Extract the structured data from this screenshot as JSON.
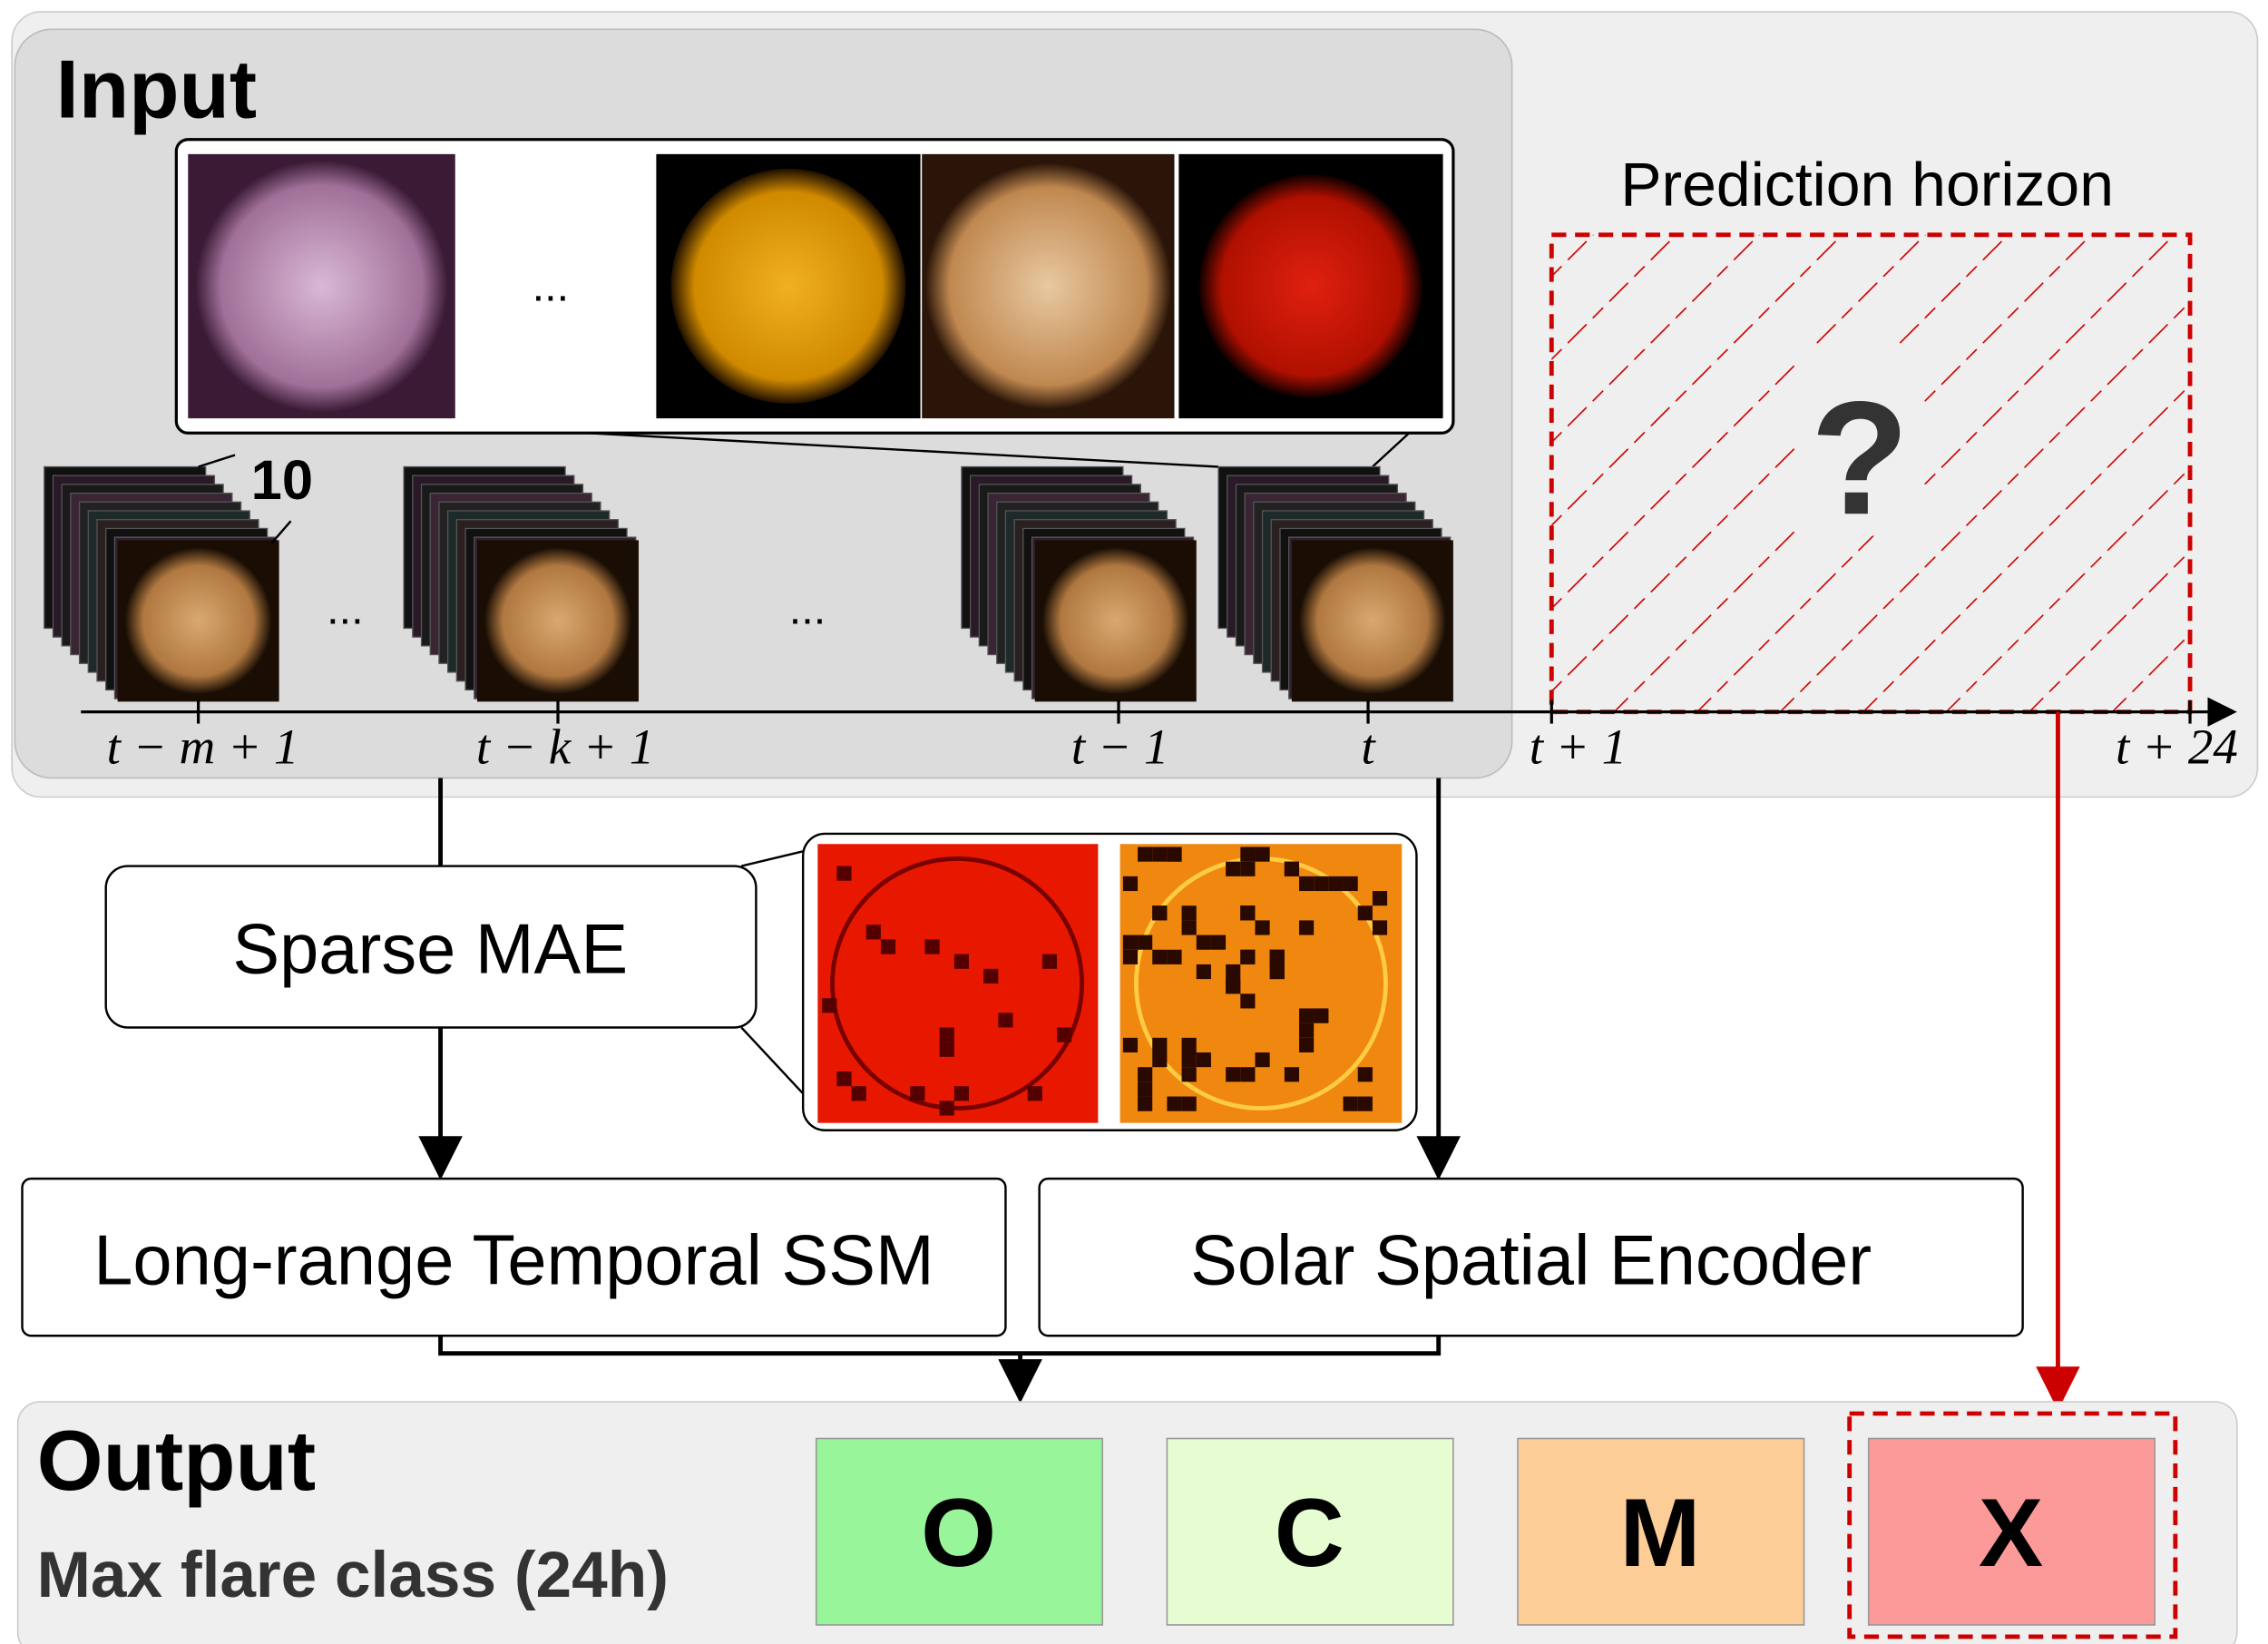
{
  "input": {
    "title": "Input",
    "channel_count": "10",
    "ellipses": [
      "...",
      "...",
      "..."
    ],
    "time_labels": [
      "t − m + 1",
      "t − k + 1",
      "t − 1",
      "t",
      "t + 1",
      "t + 24"
    ]
  },
  "prediction": {
    "title": "Prediction horizon",
    "unknown": "?"
  },
  "modules": {
    "sparse_mae": "Sparse MAE",
    "temporal": "Long-range Temporal SSM",
    "spatial": "Solar Spatial Encoder"
  },
  "output": {
    "title": "Output",
    "subtitle": "Max flare class (24h)",
    "classes": [
      "O",
      "C",
      "M",
      "X"
    ]
  }
}
